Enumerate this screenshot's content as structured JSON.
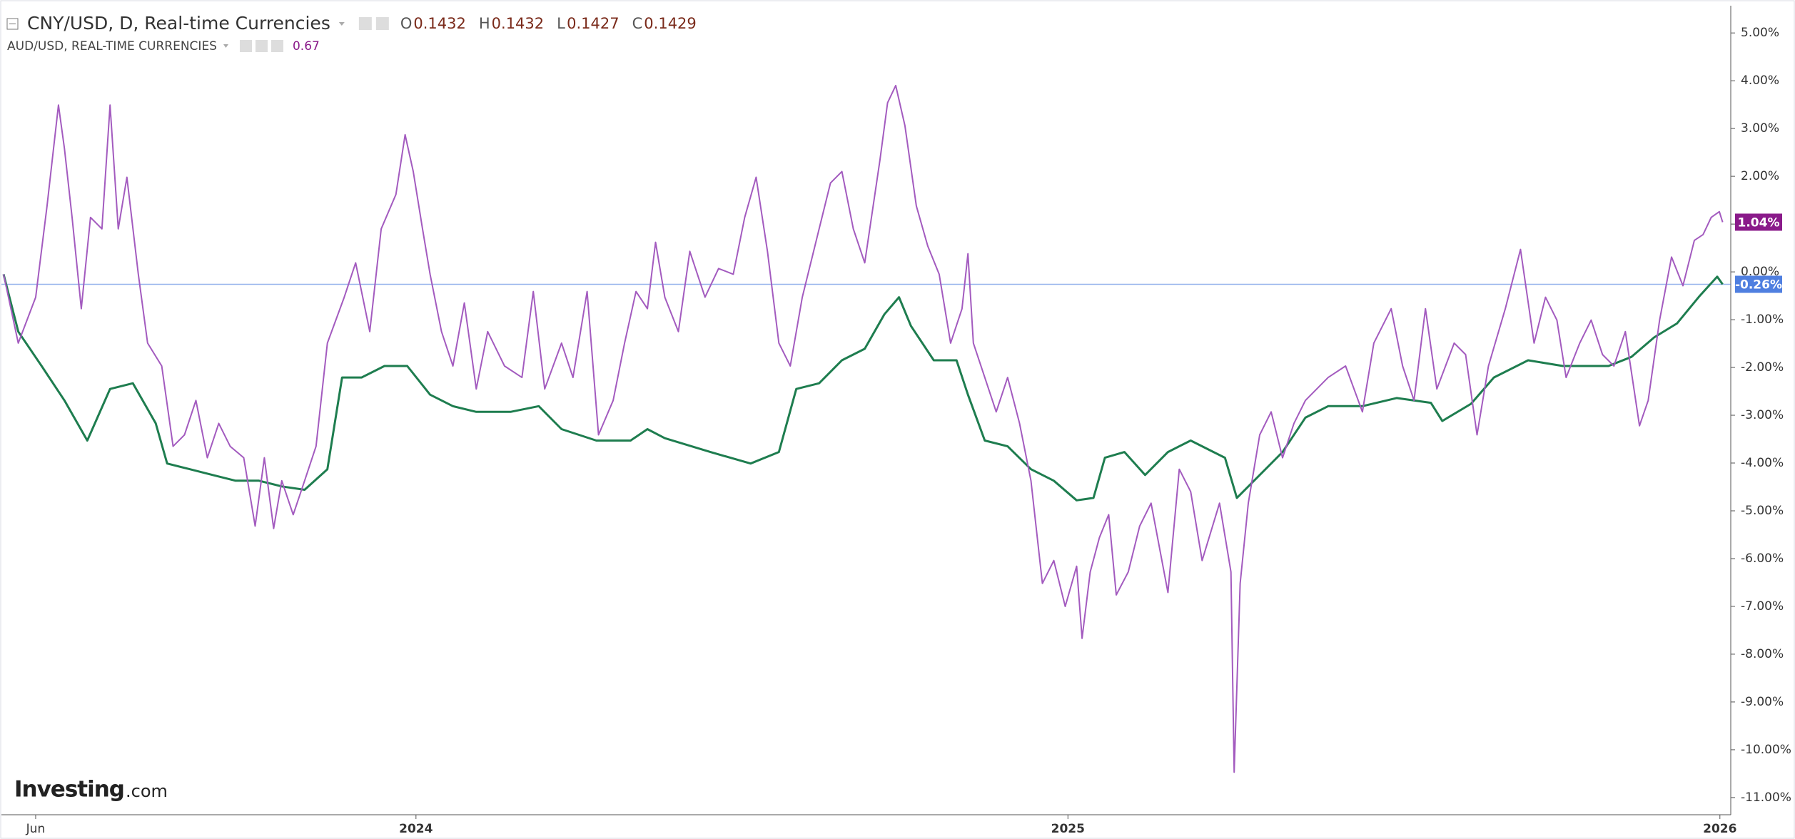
{
  "chart_data": {
    "type": "line",
    "xlim": [
      -0.63,
      31.2
    ],
    "xticks": [
      {
        "value": 0,
        "label": "Jun"
      },
      {
        "value": 7,
        "label": "2024"
      },
      {
        "value": 19,
        "label": "2025"
      },
      {
        "value": 31,
        "label": "2026"
      }
    ],
    "ylim": [
      -11.36,
      5.57
    ],
    "yticks": [
      {
        "value": 5,
        "label": "5.00%"
      },
      {
        "value": 4,
        "label": "4.00%"
      },
      {
        "value": 3,
        "label": "3.00%"
      },
      {
        "value": 2,
        "label": "2.00%"
      },
      {
        "value": 1,
        "label": "1.00%"
      },
      {
        "value": 0,
        "label": "0.00%"
      },
      {
        "value": -1,
        "label": "-1.00%"
      },
      {
        "value": -2,
        "label": "-2.00%"
      },
      {
        "value": -3,
        "label": "-3.00%"
      },
      {
        "value": -4,
        "label": "-4.00%"
      },
      {
        "value": -5,
        "label": "-5.00%"
      },
      {
        "value": -6,
        "label": "-6.00%"
      },
      {
        "value": -7,
        "label": "-7.00%"
      },
      {
        "value": -8,
        "label": "-8.00%"
      },
      {
        "value": -9,
        "label": "-9.00%"
      },
      {
        "value": -10,
        "label": "-10.00%"
      },
      {
        "value": -11,
        "label": "-11.00%"
      }
    ],
    "reference_line": {
      "value": -0.26,
      "label": "-0.26%",
      "color": "#4f7fe0"
    },
    "brand": [
      "Investing",
      ".com"
    ],
    "series": [
      {
        "name": "CNY/USD, D, Real-time Currencies",
        "color": "#1e7d4f",
        "ohlc": [
          {
            "label": "O",
            "value": 0.1432
          },
          {
            "label": "H",
            "value": 0.1432
          },
          {
            "label": "L",
            "value": 0.1427
          },
          {
            "label": "C",
            "value": 0.1429
          }
        ],
        "x": [
          -0.59,
          -0.32,
          0.11,
          0.53,
          0.95,
          1.37,
          1.79,
          2.21,
          2.42,
          2.84,
          3.26,
          3.68,
          4.11,
          4.53,
          4.95,
          5.37,
          5.64,
          6,
          6.42,
          6.84,
          7.26,
          7.68,
          8.11,
          8.74,
          9.26,
          9.68,
          10.32,
          10.95,
          11.26,
          11.58,
          12.42,
          13.16,
          13.68,
          14,
          14.42,
          14.84,
          15.26,
          15.62,
          15.89,
          16.11,
          16.53,
          16.95,
          17.16,
          17.47,
          17.89,
          18.32,
          18.74,
          19.16,
          19.47,
          19.68,
          20.04,
          20.42,
          20.84,
          21.26,
          21.68,
          21.89,
          22.11,
          22.53,
          22.95,
          23.37,
          23.79,
          24.42,
          25.05,
          25.68,
          25.89,
          26.42,
          26.84,
          27.47,
          28.11,
          28.53,
          28.95,
          29.37,
          29.79,
          30.21,
          30.63,
          30.95,
          31.05
        ],
        "values": [
          -0.05,
          -1.25,
          -1.97,
          -2.69,
          -3.53,
          -2.45,
          -2.33,
          -3.17,
          -4.01,
          -4.13,
          -4.25,
          -4.37,
          -4.37,
          -4.49,
          -4.56,
          -4.13,
          -2.21,
          -2.21,
          -1.97,
          -1.97,
          -2.57,
          -2.81,
          -2.93,
          -2.93,
          -2.81,
          -3.29,
          -3.53,
          -3.53,
          -3.29,
          -3.48,
          -3.77,
          -4.01,
          -3.77,
          -2.45,
          -2.33,
          -1.85,
          -1.61,
          -0.89,
          -0.53,
          -1.13,
          -1.85,
          -1.85,
          -2.57,
          -3.53,
          -3.65,
          -4.13,
          -4.37,
          -4.78,
          -4.73,
          -3.89,
          -3.77,
          -4.25,
          -3.77,
          -3.53,
          -3.77,
          -3.89,
          -4.73,
          -4.25,
          -3.77,
          -3.05,
          -2.81,
          -2.81,
          -2.64,
          -2.74,
          -3.12,
          -2.76,
          -2.21,
          -1.85,
          -1.97,
          -1.97,
          -1.97,
          -1.78,
          -1.37,
          -1.08,
          -0.5,
          -0.1,
          -0.26
        ]
      },
      {
        "name": "AUD/USD, REAL-TIME CURRENCIES",
        "color": "#a35bbf",
        "last": 0.67,
        "tag": {
          "value": 1.04,
          "label": "1.04%",
          "color": "#8a1a8a"
        },
        "x": [
          -0.59,
          -0.32,
          0,
          0.21,
          0.42,
          0.53,
          0.67,
          0.84,
          1.01,
          1.22,
          1.37,
          1.52,
          1.68,
          1.89,
          2.06,
          2.32,
          2.53,
          2.74,
          2.95,
          3.16,
          3.37,
          3.58,
          3.83,
          4.04,
          4.21,
          4.38,
          4.53,
          4.74,
          4.95,
          5.16,
          5.37,
          5.68,
          5.89,
          6.15,
          6.36,
          6.63,
          6.8,
          6.95,
          7.12,
          7.26,
          7.47,
          7.68,
          7.89,
          8.11,
          8.32,
          8.63,
          8.95,
          9.16,
          9.37,
          9.68,
          9.89,
          10.15,
          10.36,
          10.63,
          10.84,
          11.05,
          11.26,
          11.41,
          11.58,
          11.83,
          12.04,
          12.32,
          12.57,
          12.84,
          13.05,
          13.26,
          13.47,
          13.68,
          13.89,
          14.11,
          14.42,
          14.63,
          14.84,
          15.05,
          15.26,
          15.54,
          15.68,
          15.83,
          16,
          16.21,
          16.42,
          16.63,
          16.84,
          17.05,
          17.16,
          17.26,
          17.47,
          17.68,
          17.89,
          18.11,
          18.32,
          18.53,
          18.74,
          18.95,
          19.16,
          19.26,
          19.41,
          19.58,
          19.75,
          19.89,
          20.11,
          20.32,
          20.53,
          20.84,
          21.05,
          21.26,
          21.47,
          21.79,
          22,
          22.06,
          22.17,
          22.32,
          22.53,
          22.74,
          22.95,
          23.16,
          23.37,
          23.79,
          24.11,
          24.42,
          24.63,
          24.95,
          25.16,
          25.37,
          25.58,
          25.79,
          26.11,
          26.32,
          26.53,
          26.74,
          27.05,
          27.33,
          27.58,
          27.79,
          28,
          28.17,
          28.42,
          28.63,
          28.84,
          29.05,
          29.26,
          29.52,
          29.68,
          29.89,
          30.11,
          30.32,
          30.53,
          30.69,
          30.84,
          30.99,
          31.05
        ],
        "values": [
          -0.05,
          -1.49,
          -0.53,
          1.38,
          3.49,
          2.58,
          1.14,
          -0.77,
          1.14,
          0.9,
          3.49,
          0.9,
          1.98,
          -0.05,
          -1.49,
          -1.97,
          -3.65,
          -3.41,
          -2.69,
          -3.89,
          -3.17,
          -3.65,
          -3.89,
          -5.32,
          -3.89,
          -5.37,
          -4.37,
          -5.08,
          -4.37,
          -3.65,
          -1.49,
          -0.53,
          0.19,
          -1.25,
          0.9,
          1.62,
          2.87,
          2.1,
          0.9,
          -0.05,
          -1.25,
          -1.97,
          -0.65,
          -2.45,
          -1.25,
          -1.97,
          -2.21,
          -0.41,
          -2.45,
          -1.49,
          -2.21,
          -0.41,
          -3.41,
          -2.69,
          -1.49,
          -0.41,
          -0.77,
          0.62,
          -0.53,
          -1.25,
          0.43,
          -0.53,
          0.07,
          -0.05,
          1.14,
          1.98,
          0.43,
          -1.49,
          -1.97,
          -0.53,
          0.9,
          1.86,
          2.1,
          0.9,
          0.19,
          2.34,
          3.54,
          3.9,
          3.06,
          1.38,
          0.54,
          -0.05,
          -1.49,
          -0.77,
          0.38,
          -1.49,
          -2.21,
          -2.93,
          -2.21,
          -3.17,
          -4.37,
          -6.52,
          -6.04,
          -7,
          -6.16,
          -7.67,
          -6.28,
          -5.56,
          -5.08,
          -6.76,
          -6.28,
          -5.32,
          -4.84,
          -6.71,
          -4.13,
          -4.6,
          -6.04,
          -4.84,
          -6.28,
          -10.47,
          -6.52,
          -4.84,
          -3.41,
          -2.93,
          -3.89,
          -3.17,
          -2.69,
          -2.21,
          -1.97,
          -2.93,
          -1.49,
          -0.77,
          -1.97,
          -2.69,
          -0.77,
          -2.45,
          -1.49,
          -1.73,
          -3.41,
          -1.97,
          -0.77,
          0.47,
          -1.49,
          -0.53,
          -1.01,
          -2.21,
          -1.49,
          -1.01,
          -1.73,
          -1.97,
          -1.25,
          -3.22,
          -2.69,
          -1.01,
          0.31,
          -0.29,
          0.66,
          0.78,
          1.14,
          1.26,
          1.04
        ]
      }
    ]
  }
}
